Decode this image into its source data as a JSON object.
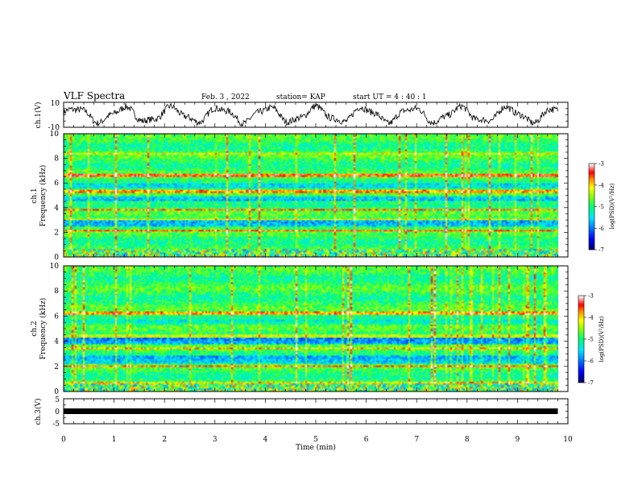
{
  "header": {
    "title": "VLF Spectra",
    "date": "Feb. 3  , 2022",
    "station": "station= KAP",
    "start_ut": "start  UT =   4 : 40 : 1"
  },
  "chart_data": [
    {
      "id": "ch1-waveform",
      "type": "line",
      "ylabel": "ch.1(V)",
      "yticks": [
        "10",
        "-10"
      ],
      "ylim": [
        -10,
        10
      ],
      "xlim": [
        0,
        10
      ],
      "description_of_signal": "oscillating noisy waveform, roughly 10 cycles over record, data ends near 9.8 min"
    },
    {
      "id": "ch1-spectrogram",
      "type": "heatmap",
      "ylabel": "ch.1\nFrequency (kHz)",
      "ylabel_lines": [
        "ch.1",
        "Frequency  (kHz)"
      ],
      "yticks": [
        "0",
        "2",
        "4",
        "6",
        "8",
        "10"
      ],
      "ylim": [
        0,
        10
      ],
      "xlim": [
        0,
        10
      ],
      "colorbar": {
        "label": "log(PSD)(V²/Hz)",
        "ticks": [
          "-3",
          "-4",
          "-5",
          "-6",
          "-7"
        ],
        "range": [
          -7,
          -3
        ]
      }
    },
    {
      "id": "ch2-spectrogram",
      "type": "heatmap",
      "ylabel_lines": [
        "ch.2",
        "Frequency  (kHz)"
      ],
      "yticks": [
        "0",
        "2",
        "4",
        "6",
        "8",
        "10"
      ],
      "ylim": [
        0,
        10
      ],
      "xlim": [
        0,
        10
      ],
      "colorbar": {
        "label": "log(PSD)(V²/Hz)",
        "ticks": [
          "-3",
          "-4",
          "-5",
          "-6",
          "-7"
        ],
        "range": [
          -7,
          -3
        ]
      }
    },
    {
      "id": "ch3-waveform",
      "type": "line",
      "ylabel": "ch.3(V)",
      "yticks": [
        "5",
        "0",
        "-5"
      ],
      "ylim": [
        -5,
        5
      ],
      "xlim": [
        0,
        10
      ]
    }
  ],
  "xaxis": {
    "label": "Time  (min)",
    "ticks": [
      "0",
      "1",
      "2",
      "3",
      "4",
      "5",
      "6",
      "7",
      "8",
      "9",
      "10"
    ],
    "range": [
      0,
      10
    ],
    "data_end": 9.8
  },
  "colors": {
    "colormap": [
      "#000080",
      "#0000ff",
      "#0080ff",
      "#00ffff",
      "#00ff80",
      "#80ff00",
      "#ffff00",
      "#ff8000",
      "#ff0000",
      "#ffffff"
    ]
  }
}
